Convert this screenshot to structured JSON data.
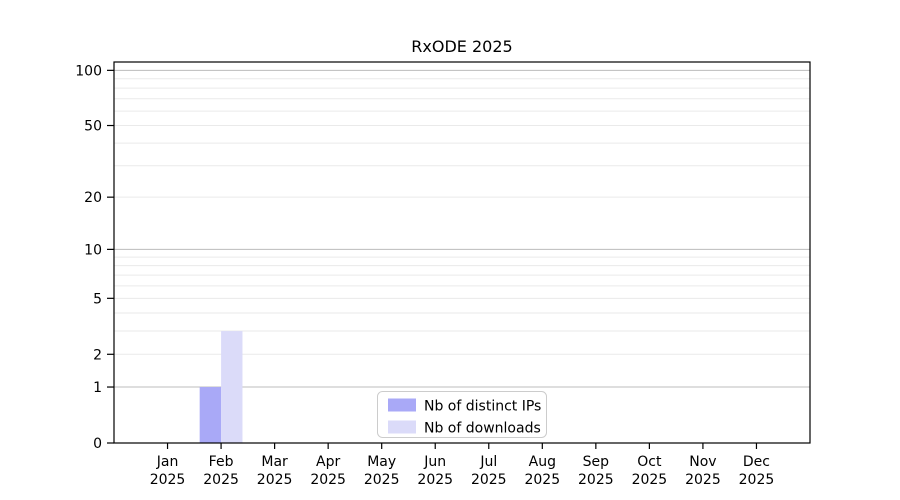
{
  "chart_data": {
    "type": "bar",
    "title": "RxODE 2025",
    "categories": [
      "Jan",
      "Feb",
      "Mar",
      "Apr",
      "May",
      "Jun",
      "Jul",
      "Aug",
      "Sep",
      "Oct",
      "Nov",
      "Dec"
    ],
    "category_year": "2025",
    "series": [
      {
        "name": "Nb of distinct IPs",
        "color": "#a9a9f7",
        "values": [
          0,
          1,
          0,
          0,
          0,
          0,
          0,
          0,
          0,
          0,
          0,
          0
        ]
      },
      {
        "name": "Nb of downloads",
        "color": "#dbdbf9",
        "values": [
          0,
          3,
          0,
          0,
          0,
          0,
          0,
          0,
          0,
          0,
          0,
          0
        ]
      }
    ],
    "yscale": "log1p",
    "ylim": [
      0,
      111
    ],
    "yticks": [
      0,
      1,
      2,
      5,
      10,
      20,
      50,
      100
    ],
    "minor_gridlines": [
      2,
      3,
      4,
      5,
      6,
      7,
      8,
      9,
      20,
      30,
      40,
      50,
      60,
      70,
      80,
      90
    ],
    "major_gridlines": [
      1,
      10,
      100
    ],
    "grid": "horizontal",
    "legend_position": "inside lower center",
    "xlabel": "",
    "ylabel": ""
  },
  "colors": {
    "background": "#ffffff",
    "spine": "#000000",
    "minor_grid": "#eaeaea",
    "major_grid": "#bcbcbc",
    "legend_border": "#cccccc",
    "legend_background": "#ffffff",
    "text": "#000000"
  }
}
